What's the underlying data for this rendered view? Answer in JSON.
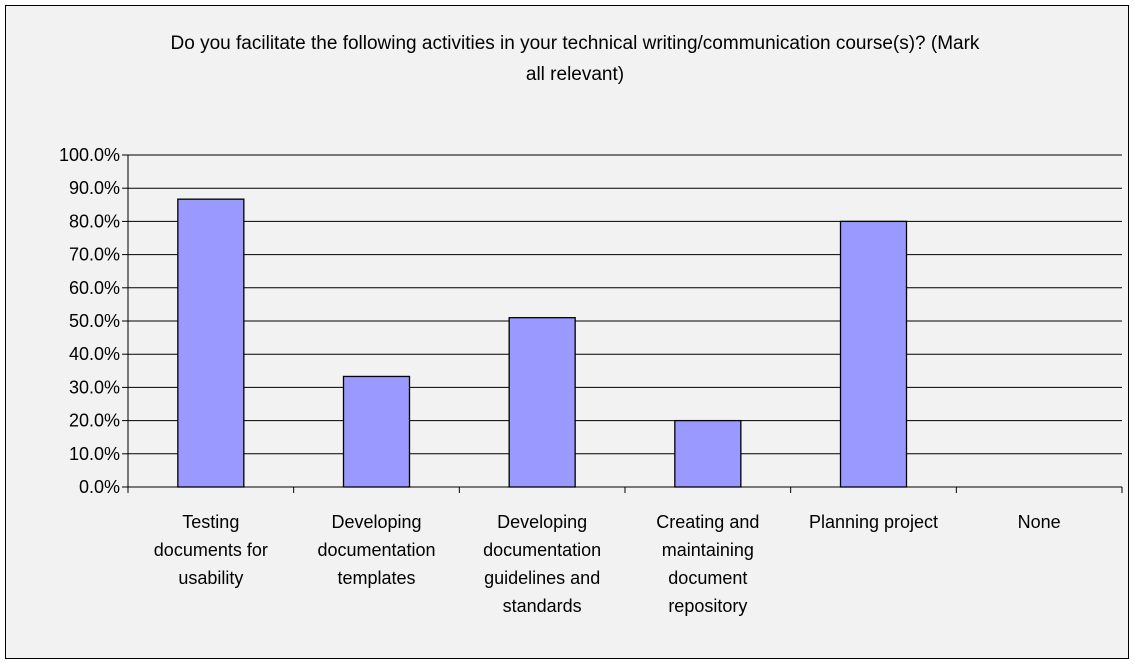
{
  "chart_data": {
    "type": "bar",
    "title": "Do you facilitate the following activities in your technical writing/communication course(s)? (Mark\nall relevant)",
    "categories": [
      [
        "Testing",
        "documents for",
        "usability"
      ],
      [
        "Developing",
        "documentation",
        "templates"
      ],
      [
        "Developing",
        "documentation",
        "guidelines and",
        "standards"
      ],
      [
        "Creating and",
        "maintaining",
        "document",
        "repository"
      ],
      [
        "Planning project"
      ],
      [
        "None"
      ]
    ],
    "values": [
      86.7,
      33.3,
      51.0,
      20.0,
      80.0,
      0.0
    ],
    "ylim": [
      0,
      100
    ],
    "yticks": [
      "0.0%",
      "10.0%",
      "20.0%",
      "30.0%",
      "40.0%",
      "50.0%",
      "60.0%",
      "70.0%",
      "80.0%",
      "90.0%",
      "100.0%"
    ],
    "grid": true,
    "legend": "none",
    "colors": {
      "bar": "#9999ff",
      "background": "#f2f2f2",
      "axis": "#000000"
    }
  }
}
